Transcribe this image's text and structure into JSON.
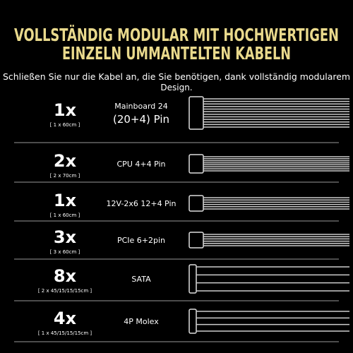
{
  "header": {
    "title": [
      "VOLLSTÄNDIG MODULAR MIT HOCHWERTIGEN",
      "EINZELN UMMANTELTEN KABELN"
    ],
    "subtitle": [
      "Schließen Sie nur die Kabel an, die Sie benötigen, dank vollständig modularem",
      "Design."
    ]
  },
  "rows": [
    {
      "count": "1x",
      "detail": "[ 1 x 60cm ]",
      "name": [
        "Mainboard 24",
        "(20+4) Pin"
      ]
    },
    {
      "count": "2x",
      "detail": "[ 2 x 70cm ]",
      "name": [
        "CPU 4+4 Pin"
      ]
    },
    {
      "count": "1x",
      "detail": "[ 1 x 60cm ]",
      "name": [
        "12V-2x6 12+4 Pin"
      ]
    },
    {
      "count": "3x",
      "detail": "[ 3 x 60cm ]",
      "name": [
        "PCIe 6+2pin"
      ]
    },
    {
      "count": "8x",
      "detail": "[ 2 x 45/15/15/15cm ]",
      "name": [
        "SATA"
      ]
    },
    {
      "count": "4x",
      "detail": "[ 1 x 45/15/15/15cm ]",
      "name": [
        "4P Molex"
      ]
    }
  ]
}
